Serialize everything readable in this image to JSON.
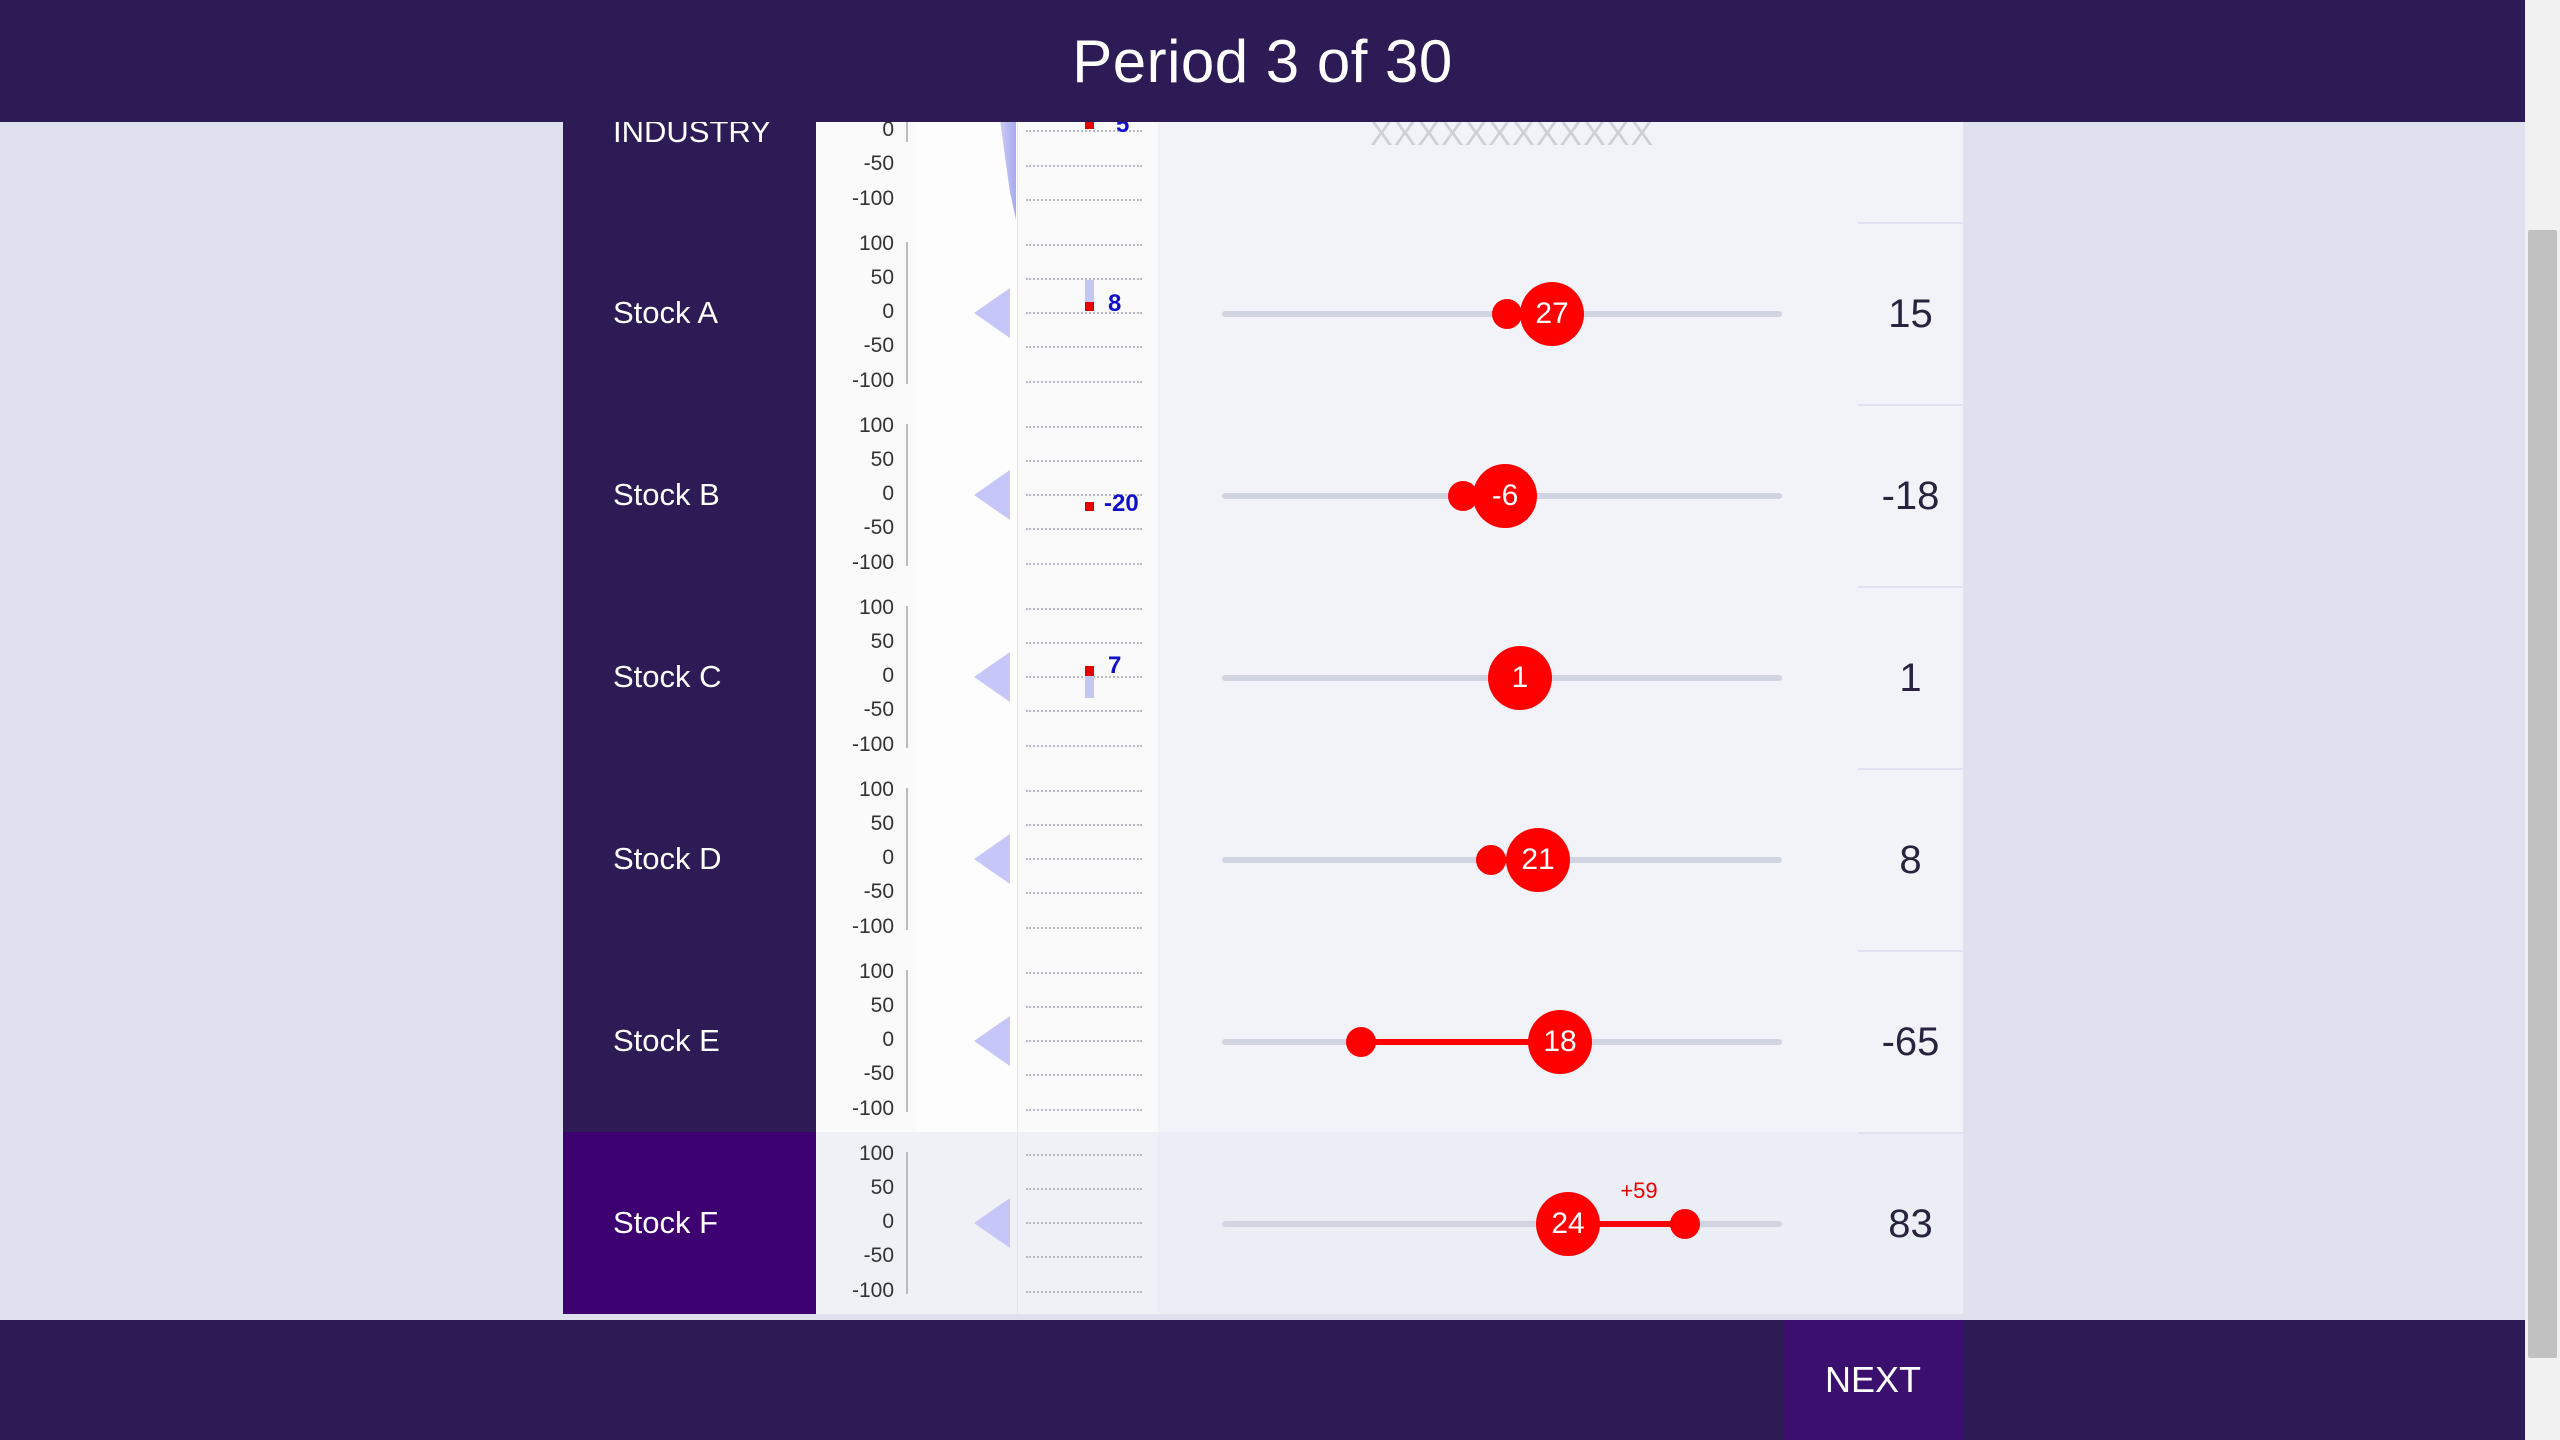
{
  "header": {
    "title": "Period 3 of 30"
  },
  "footer": {
    "next_label": "NEXT"
  },
  "axis_ticks": [
    "100",
    "50",
    "0",
    "-50",
    "-100"
  ],
  "industry": {
    "label": "INDUSTRY",
    "placeholder": "XXXXXXXXXXXX",
    "mini_value": "5",
    "visible_ticks": [
      "0",
      "-50",
      "-100"
    ]
  },
  "stocks": [
    {
      "label": "Stock A",
      "mini_value": "8",
      "knob_value": "27",
      "result": "15"
    },
    {
      "label": "Stock B",
      "mini_value": "-20",
      "knob_value": "-6",
      "result": "-18"
    },
    {
      "label": "Stock C",
      "mini_value": "7",
      "knob_value": "1",
      "result": "1"
    },
    {
      "label": "Stock D",
      "mini_value": "",
      "knob_value": "21",
      "result": "8"
    },
    {
      "label": "Stock E",
      "mini_value": "",
      "knob_value": "18",
      "result": "-65"
    },
    {
      "label": "Stock F",
      "mini_value": "",
      "knob_value": "24",
      "delta_label": "+59",
      "result": "83"
    }
  ],
  "colors": {
    "header_bg": "#2c1b55",
    "selected_bg": "#3c0070",
    "accent": "#ff0000",
    "value_blue": "#1010c8"
  }
}
